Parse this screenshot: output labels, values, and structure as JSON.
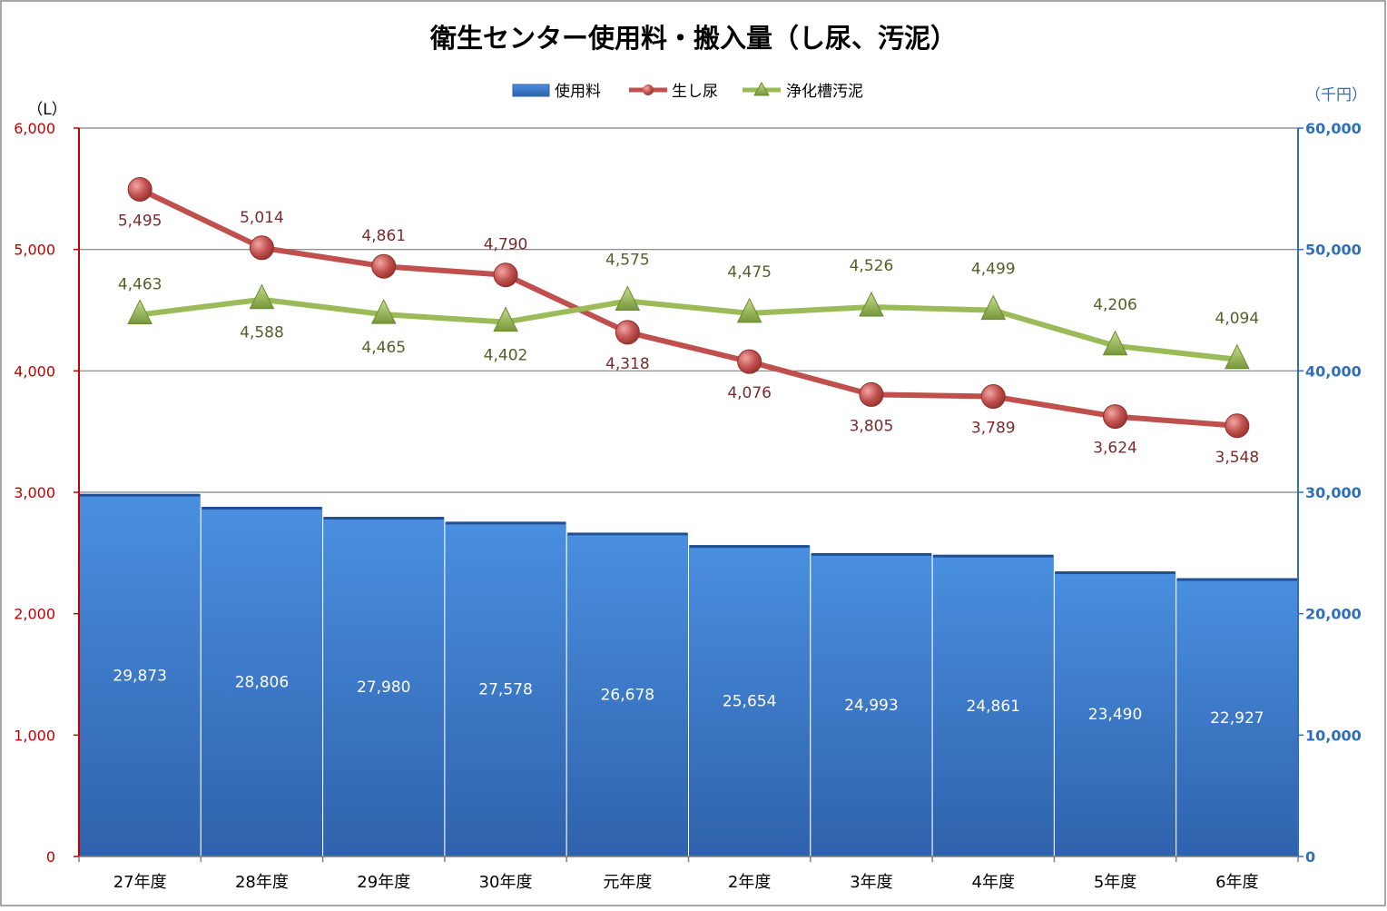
{
  "chart_data": {
    "type": "bar+line",
    "title": "衛生センター使用料・搬入量（し尿、汚泥）",
    "categories": [
      "27年度",
      "28年度",
      "29年度",
      "30年度",
      "元年度",
      "2年度",
      "3年度",
      "4年度",
      "5年度",
      "6年度"
    ],
    "left_axis": {
      "unit_label": "（L）",
      "ylim": [
        0,
        6000
      ],
      "ticks": [
        0,
        1000,
        2000,
        3000,
        4000,
        5000,
        6000
      ],
      "tick_labels": [
        "0",
        "1,000",
        "2,000",
        "3,000",
        "4,000",
        "5,000",
        "6,000"
      ],
      "color": "#c00000"
    },
    "right_axis": {
      "unit_label": "（千円）",
      "ylim": [
        0,
        60000
      ],
      "ticks": [
        0,
        10000,
        20000,
        30000,
        40000,
        50000,
        60000
      ],
      "tick_labels": [
        "0",
        "10,000",
        "20,000",
        "30,000",
        "40,000",
        "50,000",
        "60,000"
      ],
      "color": "#2f6fba"
    },
    "grid": true,
    "legend_position": "top-center",
    "series": [
      {
        "name": "使用料",
        "kind": "bar",
        "axis": "right",
        "color": "#3a7fd5",
        "values": [
          29873,
          28806,
          27980,
          27578,
          26678,
          25654,
          24993,
          24861,
          23490,
          22927
        ],
        "labels": [
          "29,873",
          "28,806",
          "27,980",
          "27,578",
          "26,678",
          "25,654",
          "24,993",
          "24,861",
          "23,490",
          "22,927"
        ]
      },
      {
        "name": "生し尿",
        "kind": "line",
        "marker": "circle",
        "axis": "left",
        "color": "#c0504d",
        "label_color": "#7a2b2b",
        "values": [
          5495,
          5014,
          4861,
          4790,
          4318,
          4076,
          3805,
          3789,
          3624,
          3548
        ],
        "labels": [
          "5,495",
          "5,014",
          "4,861",
          "4,790",
          "4,318",
          "4,076",
          "3,805",
          "3,789",
          "3,624",
          "3,548"
        ]
      },
      {
        "name": "浄化槽汚泥",
        "kind": "line",
        "marker": "triangle",
        "axis": "left",
        "color": "#9bbb59",
        "label_color": "#4f6228",
        "values": [
          4463,
          4588,
          4465,
          4402,
          4575,
          4475,
          4526,
          4499,
          4206,
          4094
        ],
        "labels": [
          "4,463",
          "4,588",
          "4,465",
          "4,402",
          "4,575",
          "4,475",
          "4,526",
          "4,499",
          "4,206",
          "4,094"
        ]
      }
    ]
  }
}
